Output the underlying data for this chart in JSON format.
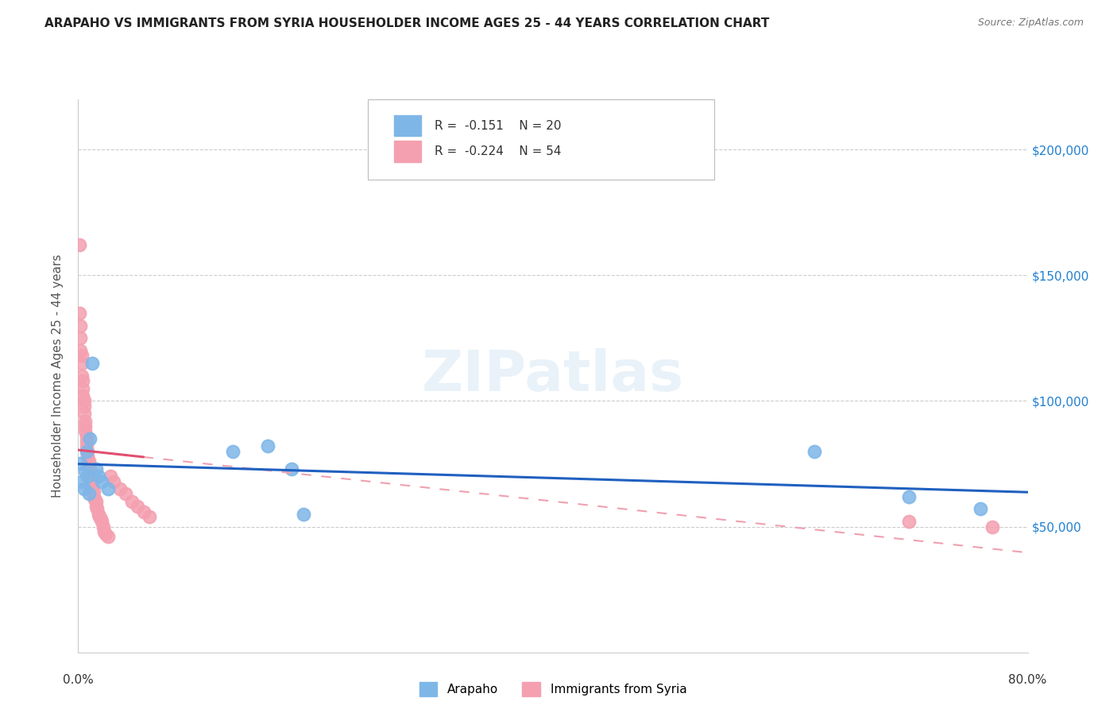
{
  "title": "ARAPAHO VS IMMIGRANTS FROM SYRIA HOUSEHOLDER INCOME AGES 25 - 44 YEARS CORRELATION CHART",
  "source": "Source: ZipAtlas.com",
  "ylabel": "Householder Income Ages 25 - 44 years",
  "ytick_labels": [
    "$50,000",
    "$100,000",
    "$150,000",
    "$200,000"
  ],
  "ytick_values": [
    50000,
    100000,
    150000,
    200000
  ],
  "ylim": [
    0,
    220000
  ],
  "xlim": [
    0.0,
    0.8
  ],
  "legend_r_arapaho": "-0.151",
  "legend_n_arapaho": "20",
  "legend_r_syria": "-0.224",
  "legend_n_syria": "54",
  "color_arapaho": "#7EB6E8",
  "color_syria": "#F4A0B0",
  "line_color_arapaho": "#2060C0",
  "line_color_syria": "#E05070",
  "line_color_syria_dashed": "#F0A0B0",
  "watermark": "ZIPatlas",
  "arapaho_x": [
    0.002,
    0.003,
    0.005,
    0.006,
    0.007,
    0.008,
    0.009,
    0.01,
    0.012,
    0.015,
    0.017,
    0.02,
    0.025,
    0.13,
    0.16,
    0.18,
    0.19,
    0.62,
    0.7,
    0.76
  ],
  "arapaho_y": [
    75000,
    68000,
    65000,
    72000,
    80000,
    70000,
    63000,
    85000,
    115000,
    73000,
    70000,
    68000,
    65000,
    80000,
    82000,
    73000,
    55000,
    80000,
    62000,
    57000
  ],
  "syria_x": [
    0.001,
    0.001,
    0.002,
    0.002,
    0.002,
    0.003,
    0.003,
    0.003,
    0.004,
    0.004,
    0.004,
    0.005,
    0.005,
    0.005,
    0.006,
    0.006,
    0.006,
    0.007,
    0.007,
    0.007,
    0.008,
    0.008,
    0.009,
    0.009,
    0.01,
    0.01,
    0.011,
    0.011,
    0.012,
    0.012,
    0.013,
    0.013,
    0.014,
    0.015,
    0.015,
    0.016,
    0.017,
    0.018,
    0.019,
    0.02,
    0.021,
    0.022,
    0.023,
    0.025,
    0.027,
    0.03,
    0.035,
    0.04,
    0.045,
    0.05,
    0.055,
    0.06,
    0.7,
    0.77
  ],
  "syria_y": [
    162000,
    135000,
    130000,
    125000,
    120000,
    118000,
    115000,
    110000,
    108000,
    105000,
    102000,
    100000,
    98000,
    95000,
    92000,
    90000,
    88000,
    86000,
    84000,
    82000,
    80000,
    78000,
    76000,
    75000,
    73000,
    72000,
    70000,
    68000,
    67000,
    65000,
    64000,
    62000,
    61000,
    60000,
    58000,
    57000,
    55000,
    54000,
    53000,
    52000,
    50000,
    48000,
    47000,
    46000,
    70000,
    68000,
    65000,
    63000,
    60000,
    58000,
    56000,
    54000,
    52000,
    50000
  ]
}
